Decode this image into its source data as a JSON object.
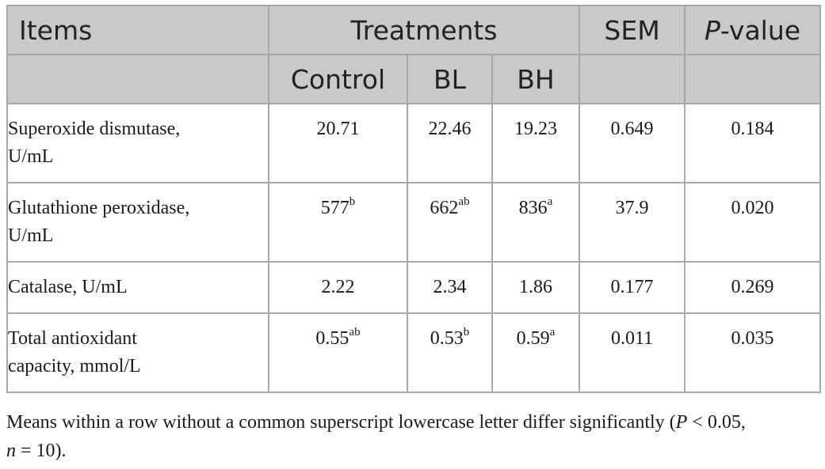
{
  "header": {
    "items": "Items",
    "treatments": "Treatments",
    "sem": "SEM",
    "pvalue_italic": "P",
    "pvalue_rest": "-value",
    "groups": [
      "Control",
      "BL",
      "BH"
    ]
  },
  "rows": [
    {
      "label_line1": "Superoxide dismutase,",
      "label_line2": "U/mL",
      "control": "20.71",
      "control_sup": "",
      "bl": "22.46",
      "bl_sup": "",
      "bh": "19.23",
      "bh_sup": "",
      "sem": "0.649",
      "p": "0.184"
    },
    {
      "label_line1": "Glutathione peroxidase,",
      "label_line2": "U/mL",
      "control": "577",
      "control_sup": "b",
      "bl": "662",
      "bl_sup": "ab",
      "bh": "836",
      "bh_sup": "a",
      "sem": "37.9",
      "p": "0.020"
    },
    {
      "label_line1": "Catalase, U/mL",
      "label_line2": "",
      "control": "2.22",
      "control_sup": "",
      "bl": "2.34",
      "bl_sup": "",
      "bh": "1.86",
      "bh_sup": "",
      "sem": "0.177",
      "p": "0.269"
    },
    {
      "label_line1": "Total antioxidant",
      "label_line2": "capacity, mmol/L",
      "control": "0.55",
      "control_sup": "ab",
      "bl": "0.53",
      "bl_sup": "b",
      "bh": "0.59",
      "bh_sup": "a",
      "sem": "0.011",
      "p": "0.035"
    }
  ],
  "footnote": {
    "part1": "Means within a row without a common superscript lowercase letter differ significantly (",
    "p_italic": "P",
    "part2": " < 0.05,",
    "n_italic": "n",
    "part3": " = 10)."
  }
}
